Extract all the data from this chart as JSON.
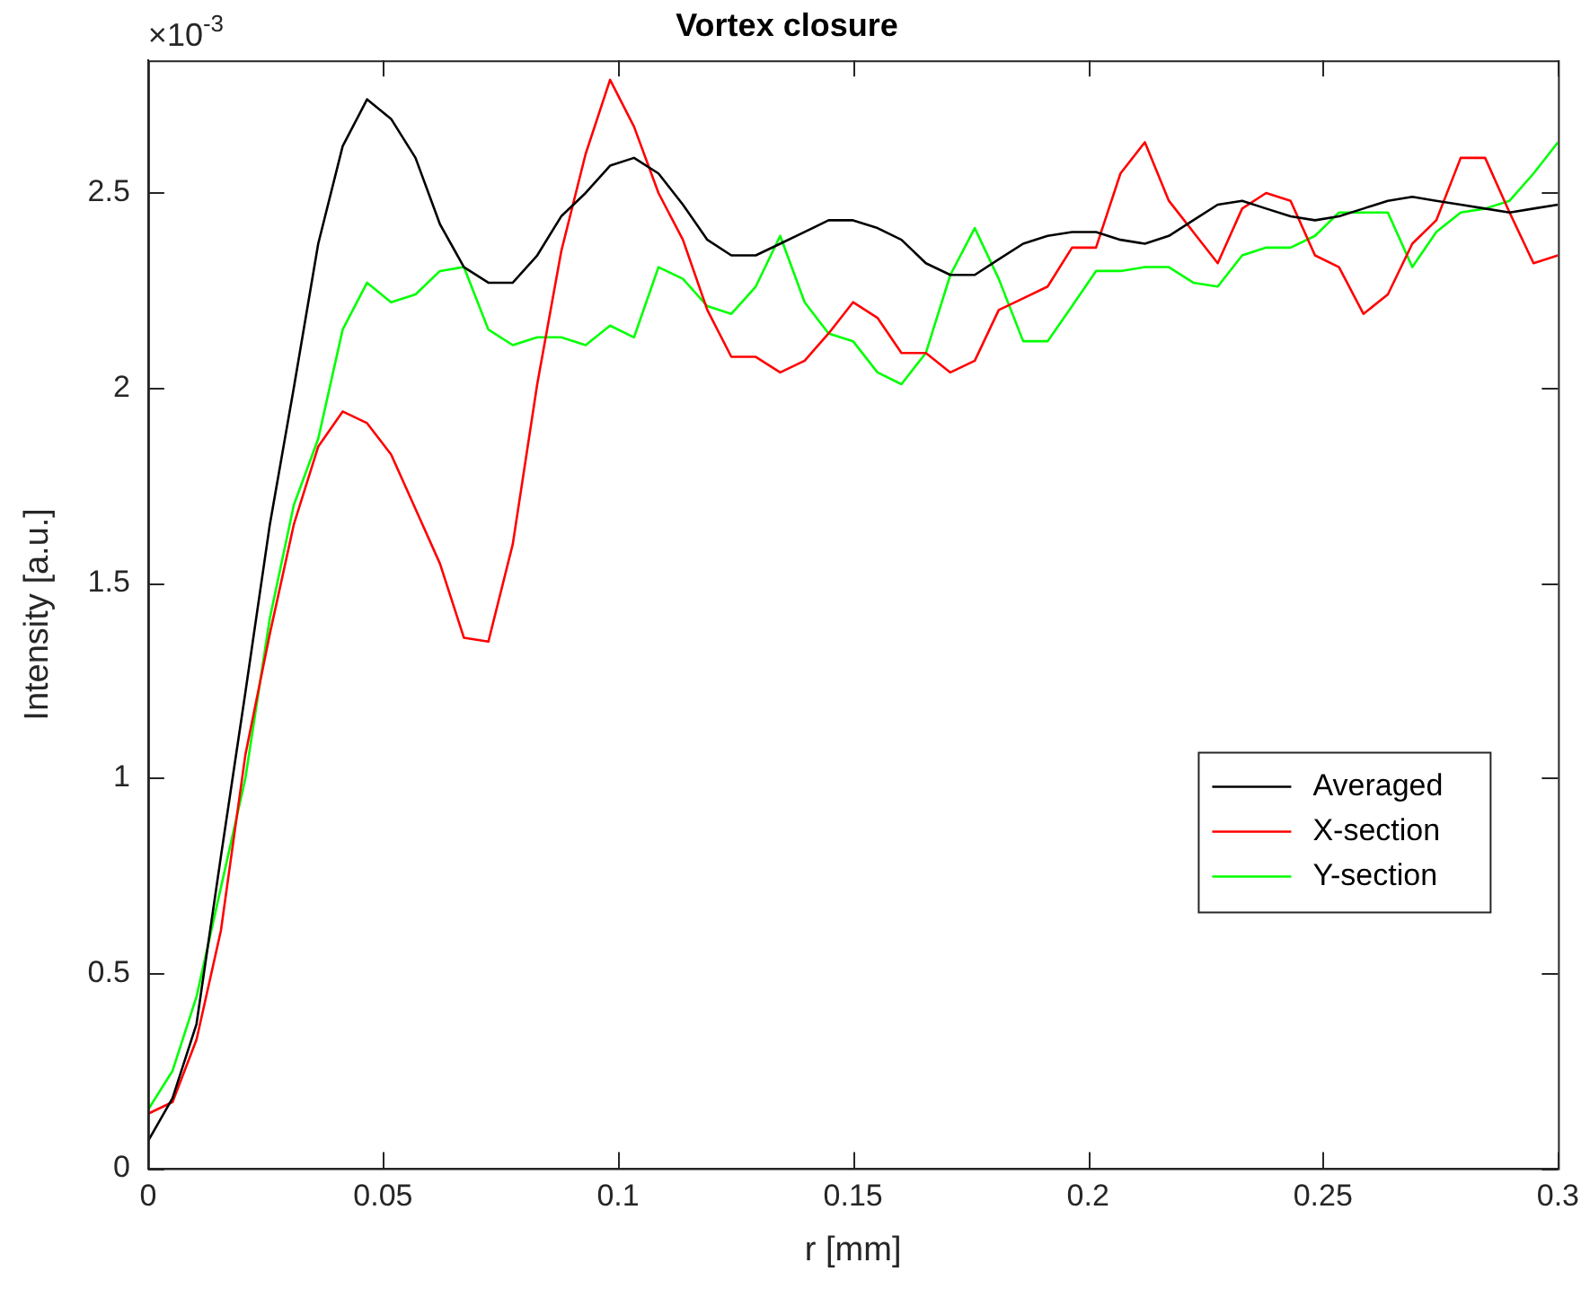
{
  "chart_data": {
    "type": "line",
    "title": "Vortex closure",
    "xlabel": "r [mm]",
    "ylabel": "Intensity [a.u.]",
    "annotations": [
      "×10$^{-3}$"
    ],
    "x": [
      0,
      0.0052,
      0.0103,
      0.0155,
      0.0207,
      0.0259,
      0.031,
      0.0362,
      0.0414,
      0.0466,
      0.0517,
      0.0569,
      0.0621,
      0.0672,
      0.0724,
      0.0776,
      0.0828,
      0.0879,
      0.0931,
      0.0983,
      0.1034,
      0.1086,
      0.1138,
      0.119,
      0.1241,
      0.1293,
      0.1345,
      0.1397,
      0.1448,
      0.15,
      0.1552,
      0.1603,
      0.1655,
      0.1707,
      0.1759,
      0.181,
      0.1862,
      0.1914,
      0.1966,
      0.2017,
      0.2069,
      0.2121,
      0.2172,
      0.2224,
      0.2276,
      0.2328,
      0.2379,
      0.2431,
      0.2483,
      0.2534,
      0.2586,
      0.2638,
      0.269,
      0.2741,
      0.2793,
      0.2845,
      0.2897,
      0.2948,
      0.3
    ],
    "series": [
      {
        "name": "Averaged",
        "color": "#000000",
        "values": [
          0.07,
          0.18,
          0.37,
          0.8,
          1.22,
          1.65,
          2.0,
          2.37,
          2.62,
          2.74,
          2.69,
          2.59,
          2.42,
          2.31,
          2.27,
          2.27,
          2.34,
          2.44,
          2.5,
          2.57,
          2.59,
          2.55,
          2.47,
          2.38,
          2.34,
          2.34,
          2.37,
          2.4,
          2.43,
          2.43,
          2.41,
          2.38,
          2.32,
          2.29,
          2.29,
          2.33,
          2.37,
          2.39,
          2.4,
          2.4,
          2.38,
          2.37,
          2.39,
          2.43,
          2.47,
          2.48,
          2.46,
          2.44,
          2.43,
          2.44,
          2.46,
          2.48,
          2.49,
          2.48,
          2.47,
          2.46,
          2.45,
          2.46,
          2.47
        ]
      },
      {
        "name": "X-section",
        "color": "#ff0000",
        "values": [
          0.14,
          0.17,
          0.33,
          0.61,
          1.06,
          1.37,
          1.65,
          1.85,
          1.94,
          1.91,
          1.83,
          1.69,
          1.55,
          1.36,
          1.35,
          1.6,
          2.01,
          2.35,
          2.6,
          2.79,
          2.67,
          2.5,
          2.38,
          2.2,
          2.08,
          2.08,
          2.04,
          2.07,
          2.14,
          2.22,
          2.18,
          2.09,
          2.09,
          2.04,
          2.07,
          2.2,
          2.23,
          2.26,
          2.36,
          2.36,
          2.55,
          2.63,
          2.48,
          2.4,
          2.32,
          2.46,
          2.5,
          2.48,
          2.34,
          2.31,
          2.19,
          2.24,
          2.37,
          2.43,
          2.59,
          2.59,
          2.45,
          2.32,
          2.34
        ]
      },
      {
        "name": "Y-section",
        "color": "#00ff00",
        "values": [
          0.15,
          0.25,
          0.44,
          0.72,
          1.0,
          1.41,
          1.7,
          1.87,
          2.15,
          2.27,
          2.22,
          2.24,
          2.3,
          2.31,
          2.15,
          2.11,
          2.13,
          2.13,
          2.11,
          2.16,
          2.13,
          2.31,
          2.28,
          2.21,
          2.19,
          2.26,
          2.39,
          2.22,
          2.14,
          2.12,
          2.04,
          2.01,
          2.09,
          2.29,
          2.41,
          2.28,
          2.12,
          2.12,
          2.21,
          2.3,
          2.3,
          2.31,
          2.31,
          2.27,
          2.26,
          2.34,
          2.36,
          2.36,
          2.39,
          2.45,
          2.45,
          2.45,
          2.31,
          2.4,
          2.45,
          2.46,
          2.48,
          2.55,
          2.63
        ]
      }
    ],
    "xlim": [
      0,
      0.3
    ],
    "xticks": [
      0,
      0.05,
      0.1,
      0.15,
      0.2,
      0.25,
      0.3
    ],
    "ylim": [
      0,
      2.84
    ],
    "yticks": [
      0,
      0.5,
      1,
      1.5,
      2,
      2.5
    ],
    "legend": "right",
    "marker": "none",
    "line_style": "solid"
  }
}
